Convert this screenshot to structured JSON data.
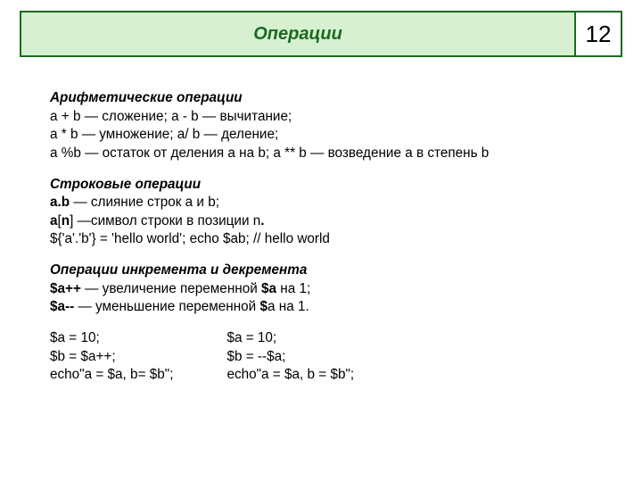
{
  "header": {
    "title": "Операции",
    "page_number": "12",
    "border_color": "#1a6b1f",
    "title_bg": "#d7f0d2",
    "title_color": "#1a6b1f"
  },
  "sections": {
    "arith": {
      "title": "Арифметические операции",
      "line1": "a + b — сложение; a - b — вычитание;",
      "line2": "a * b — умножение; a/ b — деление;",
      "line3": "a %b — остаток от деления а на b; a ** b — возведение a в степень b"
    },
    "string": {
      "title": "Строковые операции",
      "l1_pre": "a.b",
      "l1_rest": " — слияние строк a и b;",
      "l2_a": "a",
      "l2_b": "[",
      "l2_n": "n",
      "l2_c": "]",
      "l2_rest": " —символ строки в позиции n",
      "l2_dot": ".",
      "l3": "${'a'.'b'} = 'hello world'; echo $ab; // hello world"
    },
    "incdec": {
      "title": "Операции инкремента и декремента",
      "l1_a": "$a++",
      "l1_mid": " — увеличение переменной ",
      "l1_b": "$a",
      "l1_end": " на 1;",
      "l2_a": "$a--",
      "l2_mid": "  — уменьшение переменной ",
      "l2_b": "$",
      "l2_end": "a на 1."
    },
    "examples": {
      "left": "$a = 10;\n$b = $a++;\necho\"a = $a, b= $b\";",
      "right": "$a = 10;\n$b = --$a;\necho\"a = $a, b = $b\";"
    }
  }
}
